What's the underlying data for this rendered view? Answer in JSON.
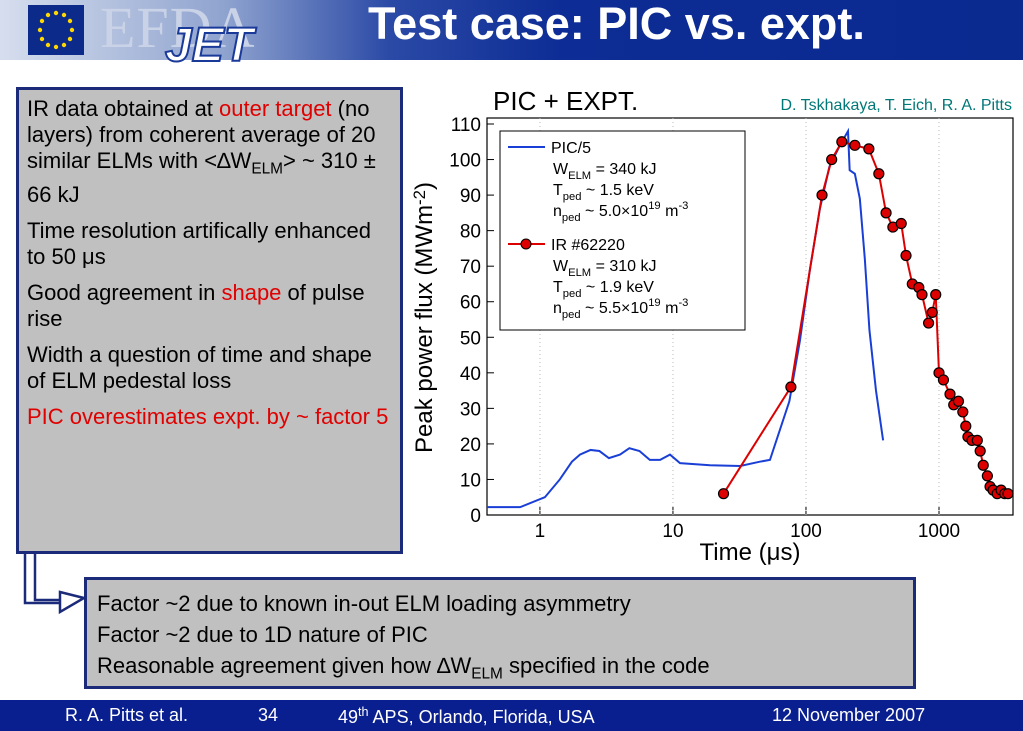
{
  "header": {
    "logo_text": "EFDA",
    "logo_sub": "JET",
    "title": "Test case: PIC vs. expt."
  },
  "left_box": {
    "bullets": [
      [
        {
          "text": "IR data obtained at "
        },
        {
          "text": "outer target",
          "color": "#e00000"
        },
        {
          "text": " (no layers) from coherent average of 20 similar ELMs with <∆W"
        },
        {
          "text": "ELM",
          "shift": "sub"
        },
        {
          "text": "> ~ 310 ± 66 kJ"
        }
      ],
      [
        {
          "text": "Time resolution artifically enhanced to 50 μs"
        }
      ],
      [
        {
          "text": "Good agreement in "
        },
        {
          "text": "shape",
          "color": "#e00000"
        },
        {
          "text": " of pulse rise"
        }
      ],
      [
        {
          "text": "Width a question of time and shape of ELM pedestal loss"
        }
      ],
      [
        {
          "text": "PIC overestimates expt. by ~ factor 5",
          "color": "#e00000"
        }
      ]
    ]
  },
  "bottom_box": {
    "lines": [
      [
        {
          "text": "Factor ~2 due to known in-out ELM loading asymmetry"
        }
      ],
      [
        {
          "text": "Factor ~2 due to 1D nature of PIC"
        }
      ],
      [
        {
          "text": "Reasonable agreement given how ∆W"
        },
        {
          "text": "ELM",
          "shift": "sub"
        },
        {
          "text": " specified in the code"
        }
      ]
    ]
  },
  "footer": {
    "author": "R. A. Pitts et al.",
    "page": 34,
    "conference": [
      {
        "text": "49"
      },
      {
        "text": "th",
        "shift": "super"
      },
      {
        "text": " APS, Orlando, Florida, USA"
      }
    ],
    "date": "12 November 2007"
  },
  "chart_data": {
    "type": "line",
    "annotations": [
      {
        "text": "PIC + EXPT.",
        "color": "#000000"
      },
      {
        "text": "D. Tskhakaya, T. Eich, R. A. Pitts",
        "color": "#007878"
      }
    ],
    "xlabel": "Time (μs)",
    "ylabel": [
      {
        "text": "Peak power flux (MWm"
      },
      {
        "text": "-2",
        "shift": "super"
      },
      {
        "text": ")"
      }
    ],
    "xscale": "log",
    "xlim": [
      0.4,
      3600
    ],
    "xticks": [
      1,
      10,
      100,
      1000
    ],
    "ylim": [
      0,
      110
    ],
    "yticks": [
      0,
      10,
      20,
      30,
      40,
      50,
      60,
      70,
      80,
      90,
      100,
      110
    ],
    "grid": true,
    "legend": "upper left",
    "series": [
      {
        "name": "PIC/5",
        "color": "#1a3fd6",
        "marker": "none",
        "details": [
          [
            {
              "text": "W"
            },
            {
              "text": "ELM",
              "shift": "sub"
            },
            {
              "text": " = 340 kJ"
            }
          ],
          [
            {
              "text": "T"
            },
            {
              "text": "ped",
              "shift": "sub"
            },
            {
              "text": " ~ 1.5 keV"
            }
          ],
          [
            {
              "text": "n"
            },
            {
              "text": "ped",
              "shift": "sub"
            },
            {
              "text": " ~ 5.0×10"
            },
            {
              "text": "19",
              "shift": "super"
            },
            {
              "text": " m"
            },
            {
              "text": "-3",
              "shift": "super"
            }
          ]
        ],
        "x": [
          0.4,
          0.71,
          1.09,
          1.41,
          1.74,
          2.0,
          2.4,
          2.8,
          3.3,
          4.0,
          4.7,
          5.6,
          6.7,
          8.0,
          9.5,
          11.3,
          19,
          32,
          45,
          53.6,
          75,
          90,
          107,
          127,
          150,
          180,
          207,
          213,
          233,
          254,
          277,
          300,
          336,
          380
        ],
        "values": [
          2.2,
          2.2,
          5,
          10,
          15,
          17,
          18.3,
          18,
          16,
          17,
          18.8,
          18,
          15.5,
          15.5,
          17,
          14.6,
          14,
          13.8,
          15,
          15.5,
          32,
          49,
          69,
          86,
          98,
          104,
          108,
          97,
          96,
          89,
          72,
          52,
          35,
          21
        ]
      },
      {
        "name": "IR #62220",
        "color": "#dd0000",
        "marker": "circle",
        "details": [
          [
            {
              "text": "W"
            },
            {
              "text": "ELM",
              "shift": "sub"
            },
            {
              "text": " = 310 kJ"
            }
          ],
          [
            {
              "text": "T"
            },
            {
              "text": "ped",
              "shift": "sub"
            },
            {
              "text": " ~ 1.9 keV"
            }
          ],
          [
            {
              "text": "n"
            },
            {
              "text": "ped",
              "shift": "sub"
            },
            {
              "text": " ~ 5.5×10"
            },
            {
              "text": "19",
              "shift": "super"
            },
            {
              "text": " m"
            },
            {
              "text": "-3",
              "shift": "super"
            }
          ]
        ],
        "x": [
          24,
          77,
          132,
          156,
          186,
          233,
          297,
          353,
          400,
          450,
          520,
          565,
          630,
          705,
          745,
          835,
          890,
          945,
          1000,
          1080,
          1210,
          1290,
          1400,
          1510,
          1590,
          1650,
          1770,
          1940,
          2040,
          2150,
          2310,
          2420,
          2550,
          2740,
          2930,
          3120,
          3300
        ],
        "values": [
          6,
          36,
          90,
          100,
          105,
          104,
          103,
          96,
          85,
          81,
          82,
          73,
          65,
          64,
          62,
          54,
          57,
          62,
          40,
          38,
          34,
          31,
          32,
          29,
          25,
          22,
          21,
          21,
          18,
          14,
          11,
          8,
          7,
          6,
          7,
          6,
          6
        ]
      }
    ]
  }
}
